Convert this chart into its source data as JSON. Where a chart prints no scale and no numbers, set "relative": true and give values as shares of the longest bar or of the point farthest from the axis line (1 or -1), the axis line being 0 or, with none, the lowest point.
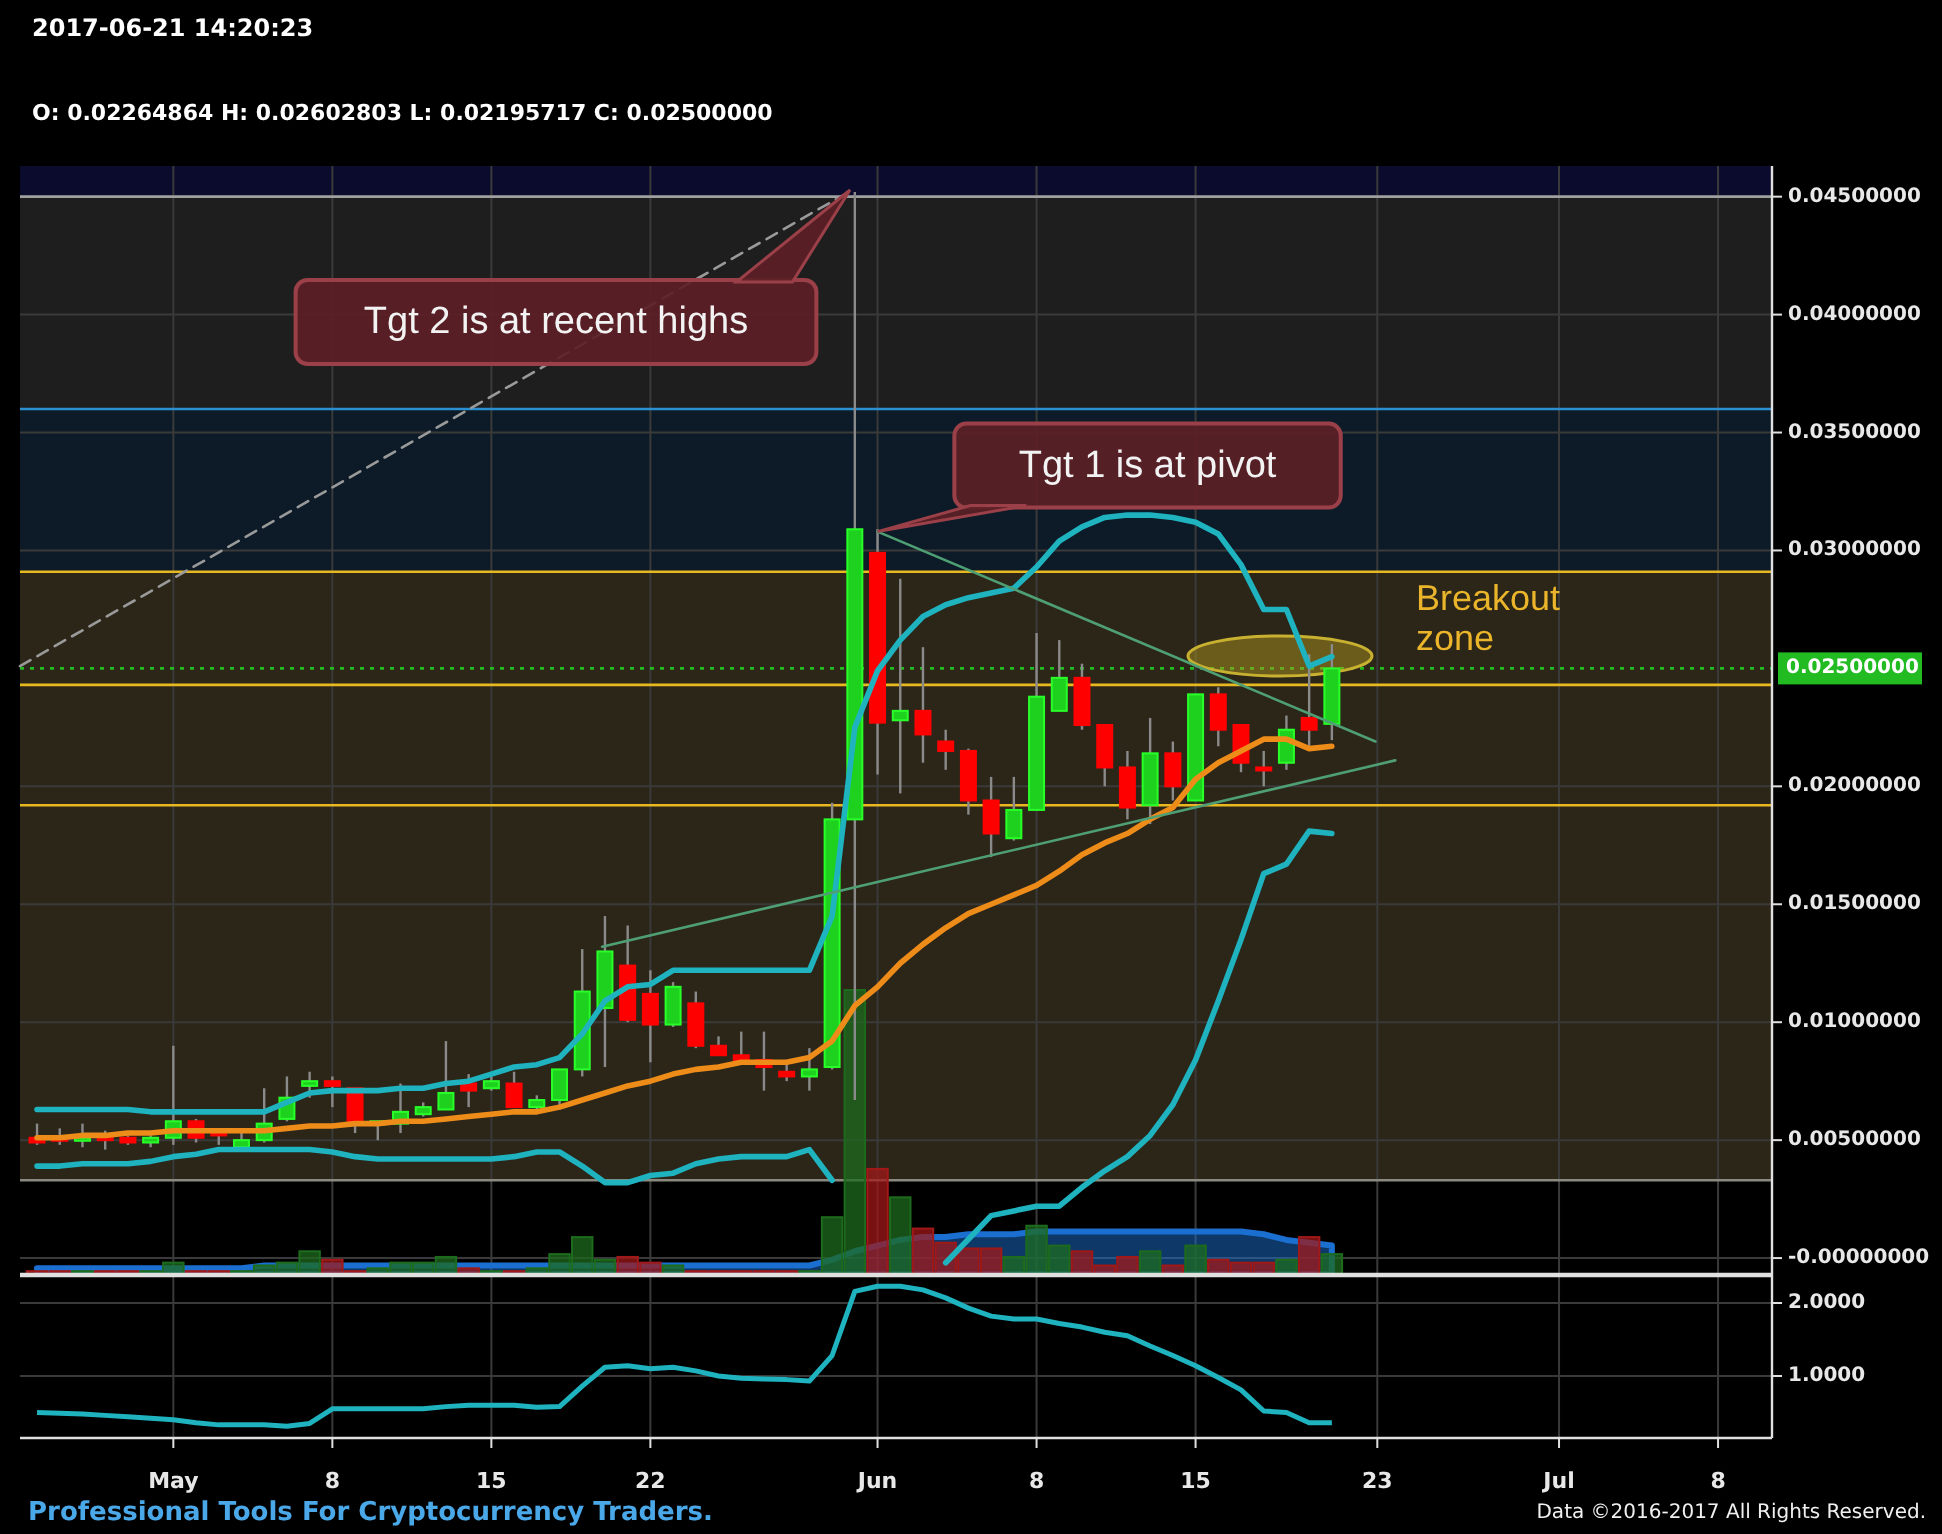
{
  "chart_data": [
    {
      "type": "candlestick",
      "title": "2017-06-21 14:20:23",
      "subtitle": "O: 0.02264864 H: 0.02602803 L: 0.02195717 C: 0.02500000",
      "x": [
        "2017-04-25",
        "2017-04-26",
        "2017-04-27",
        "2017-04-28",
        "2017-04-29",
        "2017-04-30",
        "2017-05-01",
        "2017-05-02",
        "2017-05-03",
        "2017-05-04",
        "2017-05-05",
        "2017-05-06",
        "2017-05-07",
        "2017-05-08",
        "2017-05-09",
        "2017-05-10",
        "2017-05-11",
        "2017-05-12",
        "2017-05-13",
        "2017-05-14",
        "2017-05-15",
        "2017-05-16",
        "2017-05-17",
        "2017-05-18",
        "2017-05-19",
        "2017-05-20",
        "2017-05-21",
        "2017-05-22",
        "2017-05-23",
        "2017-05-24",
        "2017-05-25",
        "2017-05-26",
        "2017-05-27",
        "2017-05-28",
        "2017-05-29",
        "2017-05-30",
        "2017-05-31",
        "2017-06-01",
        "2017-06-02",
        "2017-06-03",
        "2017-06-04",
        "2017-06-05",
        "2017-06-06",
        "2017-06-07",
        "2017-06-08",
        "2017-06-09",
        "2017-06-10",
        "2017-06-11",
        "2017-06-12",
        "2017-06-13",
        "2017-06-14",
        "2017-06-15",
        "2017-06-16",
        "2017-06-17",
        "2017-06-18",
        "2017-06-19",
        "2017-06-20",
        "2017-06-21"
      ],
      "ohlc": [
        [
          0.0051,
          0.0057,
          0.0048,
          0.0049
        ],
        [
          0.0051,
          0.0055,
          0.0048,
          0.005
        ],
        [
          0.005,
          0.0057,
          0.0047,
          0.0051
        ],
        [
          0.0052,
          0.0054,
          0.0046,
          0.005
        ],
        [
          0.0051,
          0.0052,
          0.0048,
          0.0049
        ],
        [
          0.0049,
          0.0052,
          0.0047,
          0.0051
        ],
        [
          0.0051,
          0.009,
          0.0048,
          0.0058
        ],
        [
          0.0058,
          0.0059,
          0.0049,
          0.0051
        ],
        [
          0.0054,
          0.0055,
          0.0048,
          0.0052
        ],
        [
          0.0047,
          0.0054,
          0.0046,
          0.005
        ],
        [
          0.005,
          0.0072,
          0.0049,
          0.0057
        ],
        [
          0.0059,
          0.0077,
          0.0058,
          0.0068
        ],
        [
          0.0073,
          0.0079,
          0.0068,
          0.0075
        ],
        [
          0.0075,
          0.0077,
          0.0064,
          0.0073
        ],
        [
          0.0072,
          0.0072,
          0.0053,
          0.0057
        ],
        [
          0.0057,
          0.0058,
          0.005,
          0.0058
        ],
        [
          0.0057,
          0.0074,
          0.0053,
          0.0062
        ],
        [
          0.0061,
          0.0066,
          0.006,
          0.0064
        ],
        [
          0.0063,
          0.0092,
          0.0063,
          0.007
        ],
        [
          0.0074,
          0.0078,
          0.0064,
          0.0071
        ],
        [
          0.0072,
          0.0077,
          0.0071,
          0.0075
        ],
        [
          0.0074,
          0.0079,
          0.0064,
          0.0064
        ],
        [
          0.0064,
          0.0069,
          0.0062,
          0.0067
        ],
        [
          0.0067,
          0.008,
          0.0063,
          0.008
        ],
        [
          0.008,
          0.0131,
          0.0077,
          0.0113
        ],
        [
          0.0106,
          0.0145,
          0.0081,
          0.013
        ],
        [
          0.0124,
          0.0141,
          0.01,
          0.0101
        ],
        [
          0.0112,
          0.0122,
          0.0083,
          0.0099
        ],
        [
          0.0099,
          0.0117,
          0.0098,
          0.0115
        ],
        [
          0.0108,
          0.0113,
          0.0089,
          0.009
        ],
        [
          0.009,
          0.0094,
          0.0086,
          0.0086
        ],
        [
          0.0086,
          0.0096,
          0.0083,
          0.0084
        ],
        [
          0.0084,
          0.0096,
          0.0071,
          0.0081
        ],
        [
          0.0079,
          0.0084,
          0.0075,
          0.0077
        ],
        [
          0.0077,
          0.0089,
          0.0071,
          0.008
        ],
        [
          0.0081,
          0.0193,
          0.008,
          0.0186
        ],
        [
          0.0186,
          0.0452,
          0.0067,
          0.0309
        ],
        [
          0.0299,
          0.0309,
          0.0205,
          0.0227
        ],
        [
          0.0228,
          0.0288,
          0.0197,
          0.0232
        ],
        [
          0.0232,
          0.0259,
          0.021,
          0.0222
        ],
        [
          0.0219,
          0.0224,
          0.0207,
          0.0215
        ],
        [
          0.0215,
          0.0216,
          0.0188,
          0.0194
        ],
        [
          0.0194,
          0.0204,
          0.017,
          0.018
        ],
        [
          0.0178,
          0.0204,
          0.0177,
          0.019
        ],
        [
          0.019,
          0.0265,
          0.019,
          0.0238
        ],
        [
          0.0232,
          0.0262,
          0.0232,
          0.0246
        ],
        [
          0.0246,
          0.0252,
          0.0224,
          0.0226
        ],
        [
          0.0226,
          0.0226,
          0.02,
          0.0208
        ],
        [
          0.0208,
          0.0215,
          0.0186,
          0.0191
        ],
        [
          0.0192,
          0.0229,
          0.0184,
          0.0214
        ],
        [
          0.0214,
          0.0219,
          0.0194,
          0.02
        ],
        [
          0.0194,
          0.0239,
          0.0194,
          0.0239
        ],
        [
          0.0239,
          0.0242,
          0.0217,
          0.0224
        ],
        [
          0.0226,
          0.0226,
          0.0206,
          0.021
        ],
        [
          0.0208,
          0.0215,
          0.02,
          0.0207
        ],
        [
          0.021,
          0.023,
          0.0207,
          0.0224
        ],
        [
          0.0229,
          0.0256,
          0.0217,
          0.0224
        ],
        [
          0.02264864,
          0.02602803,
          0.02195717,
          0.025
        ]
      ],
      "colors": [
        "#ff0000",
        "#ff0000",
        "#1fd11f",
        "#ff0000",
        "#ff0000",
        "#1fd11f",
        "#1fd11f",
        "#ff0000",
        "#ff0000",
        "#1fd11f",
        "#1fd11f",
        "#1fd11f",
        "#1fd11f",
        "#ff0000",
        "#ff0000",
        "#1fd11f",
        "#1fd11f",
        "#1fd11f",
        "#1fd11f",
        "#ff0000",
        "#1fd11f",
        "#ff0000",
        "#1fd11f",
        "#1fd11f",
        "#1fd11f",
        "#1fd11f",
        "#ff0000",
        "#ff0000",
        "#1fd11f",
        "#ff0000",
        "#ff0000",
        "#ff0000",
        "#ff0000",
        "#ff0000",
        "#1fd11f",
        "#1fd11f",
        "#1fd11f",
        "#ff0000",
        "#1fd11f",
        "#ff0000",
        "#ff0000",
        "#ff0000",
        "#ff0000",
        "#1fd11f",
        "#1fd11f",
        "#1fd11f",
        "#ff0000",
        "#ff0000",
        "#ff0000",
        "#1fd11f",
        "#ff0000",
        "#1fd11f",
        "#ff0000",
        "#ff0000",
        "#ff0000",
        "#1fd11f",
        "#ff0000",
        "#1fd11f"
      ],
      "series": [
        {
          "type": "line",
          "color": "#1fb3bf",
          "values": [
            0.0063,
            0.0063,
            0.0063,
            0.0063,
            0.0063,
            0.0062,
            0.0062,
            0.0062,
            0.0062,
            0.0062,
            0.0062,
            0.0066,
            0.007,
            0.0071,
            0.0071,
            0.0071,
            0.0072,
            0.0072,
            0.0074,
            0.0075,
            0.0078,
            0.0081,
            0.0082,
            0.0085,
            0.0095,
            0.0109,
            0.0115,
            0.0116,
            0.0122,
            0.0122,
            0.0122,
            0.0122,
            0.0122,
            0.0122,
            0.0122,
            0.0145,
            0.0225,
            0.0249,
            0.0262,
            0.0272,
            0.0277,
            0.028,
            0.0282,
            0.0284,
            0.0293,
            0.0304,
            0.031,
            0.0314,
            0.0315,
            0.0315,
            0.0314,
            0.0312,
            0.0307,
            0.0294,
            0.0275,
            0.0275,
            0.0251,
            0.0255
          ]
        },
        {
          "type": "line",
          "color": "#ee8c1a",
          "values": [
            0.0051,
            0.0051,
            0.0052,
            0.0052,
            0.0053,
            0.0053,
            0.0054,
            0.0054,
            0.0054,
            0.0054,
            0.0054,
            0.0055,
            0.0056,
            0.0056,
            0.0057,
            0.0057,
            0.0058,
            0.0058,
            0.0059,
            0.006,
            0.0061,
            0.0062,
            0.0062,
            0.0064,
            0.0067,
            0.007,
            0.0073,
            0.0075,
            0.0078,
            0.008,
            0.0081,
            0.0083,
            0.0083,
            0.0083,
            0.0085,
            0.0092,
            0.0107,
            0.0115,
            0.0125,
            0.0133,
            0.014,
            0.0146,
            0.015,
            0.0154,
            0.0158,
            0.0164,
            0.0171,
            0.0176,
            0.018,
            0.0186,
            0.0191,
            0.0203,
            0.021,
            0.0215,
            0.022,
            0.022,
            0.0216,
            0.0217
          ]
        },
        {
          "type": "line",
          "color": "#1fb3bf",
          "values": [
            0.0039,
            0.0039,
            0.004,
            0.004,
            0.004,
            0.0041,
            0.0043,
            0.0044,
            0.0046,
            0.0046,
            0.0046,
            0.0046,
            0.0046,
            0.0045,
            0.0043,
            0.0042,
            0.0042,
            0.0042,
            0.0042,
            0.0042,
            0.0042,
            0.0043,
            0.0045,
            0.0045,
            0.0039,
            0.0032,
            0.0032,
            0.0035,
            0.0036,
            0.004,
            0.0042,
            0.0043,
            0.0043,
            0.0043,
            0.0046,
            0.0033,
            null,
            null,
            null,
            null,
            -0.0002,
            0.0008,
            0.0018,
            0.002,
            0.0022,
            0.0022,
            0.003,
            0.0037,
            0.0043,
            0.0052,
            0.0065,
            0.0084,
            0.0109,
            0.0135,
            0.0163,
            0.0167,
            0.0181,
            0.018
          ]
        },
        {
          "type": "line",
          "color": "#9a9a9a",
          "line_style": "dashed",
          "x": [
            "2017-04-24T06:00",
            "2017-05-30T22:00"
          ],
          "values": [
            0.0251,
            0.0453
          ]
        },
        {
          "type": "line",
          "color": "#4f9f74",
          "x": [
            "2017-06-01",
            "2017-06-22T22:00"
          ],
          "values": [
            0.0308,
            0.0219
          ]
        },
        {
          "type": "line",
          "color": "#4f9f74",
          "x": [
            "2017-05-19T21:00",
            "2017-06-23T19:00"
          ],
          "values": [
            0.0132,
            0.0211
          ]
        }
      ],
      "xlim": [
        "2017-04-24T06:00",
        "2017-07-10T09:00"
      ],
      "xticks": [
        {
          "value": "2017-05-01",
          "label": null
        },
        {
          "value": "2017-05-08",
          "label": null
        },
        {
          "value": "2017-05-15",
          "label": null
        },
        {
          "value": "2017-05-22",
          "label": null
        },
        {
          "value": "2017-06-01",
          "label": null
        },
        {
          "value": "2017-06-08",
          "label": null
        },
        {
          "value": "2017-06-15",
          "label": null
        },
        {
          "value": "2017-06-23",
          "label": null
        },
        {
          "value": "2017-07-01",
          "label": null
        },
        {
          "value": "2017-07-08",
          "label": null
        }
      ],
      "ylim": [
        -0.00076,
        0.0463
      ],
      "yticks": [
        {
          "value": 0,
          "label": "-0.00000000"
        },
        {
          "value": 0.005,
          "label": "0.00500000"
        },
        {
          "value": 0.01,
          "label": "0.01000000"
        },
        {
          "value": 0.015,
          "label": "0.01500000"
        },
        {
          "value": 0.02,
          "label": "0.02000000"
        },
        {
          "value": 0.03,
          "label": "0.03000000"
        },
        {
          "value": 0.035,
          "label": "0.03500000"
        },
        {
          "value": 0.04,
          "label": "0.04000000"
        },
        {
          "value": 0.045,
          "label": "0.04500000"
        }
      ],
      "tick_labels": "y",
      "grid": true,
      "bands": [
        {
          "axis": "y",
          "from": 0.045,
          "to": 0.0463,
          "color": "#0b0b2e"
        },
        {
          "axis": "y",
          "from": 0.036,
          "to": 0.045,
          "color": "#1e1e1e"
        },
        {
          "axis": "y",
          "from": 0.0291,
          "to": 0.036,
          "color": "#0c1b27"
        },
        {
          "axis": "y",
          "from": 0.0033,
          "to": 0.0291,
          "color": "#2c2619"
        }
      ],
      "ref_lines": [
        {
          "axis": "y",
          "value": 0.045,
          "color": "#a0a0a0"
        },
        {
          "axis": "y",
          "value": 0.036,
          "color": "#2b8fd0"
        },
        {
          "axis": "y",
          "value": 0.0291,
          "color": "#e8b820"
        },
        {
          "axis": "y",
          "value": 0.0243,
          "color": "#e8b820"
        },
        {
          "axis": "y",
          "value": 0.0192,
          "color": "#e8b820"
        },
        {
          "axis": "y",
          "value": 0.0033,
          "color": "#8a8a80"
        },
        {
          "axis": "y",
          "value": 0.025,
          "color": "#22bb22",
          "line_style": "dotted",
          "label": "0.02500000"
        }
      ],
      "annotations": [
        "Tgt 2 is at recent highs",
        {
          "text": "Tgt 1 is at pivot",
          "x": "2017-06-01",
          "y": 0.0308
        },
        "Breakout zone"
      ]
    },
    {
      "type": "bar",
      "relative": true,
      "tick_labels": false,
      "x": [
        "2017-04-25",
        "2017-04-26",
        "2017-04-27",
        "2017-04-28",
        "2017-04-29",
        "2017-04-30",
        "2017-05-01",
        "2017-05-02",
        "2017-05-03",
        "2017-05-04",
        "2017-05-05",
        "2017-05-06",
        "2017-05-07",
        "2017-05-08",
        "2017-05-09",
        "2017-05-10",
        "2017-05-11",
        "2017-05-12",
        "2017-05-13",
        "2017-05-14",
        "2017-05-15",
        "2017-05-16",
        "2017-05-17",
        "2017-05-18",
        "2017-05-19",
        "2017-05-20",
        "2017-05-21",
        "2017-05-22",
        "2017-05-23",
        "2017-05-24",
        "2017-05-25",
        "2017-05-26",
        "2017-05-27",
        "2017-05-28",
        "2017-05-29",
        "2017-05-30",
        "2017-05-31",
        "2017-06-01",
        "2017-06-02",
        "2017-06-03",
        "2017-06-04",
        "2017-06-05",
        "2017-06-06",
        "2017-06-07",
        "2017-06-08",
        "2017-06-09",
        "2017-06-10",
        "2017-06-11",
        "2017-06-12",
        "2017-06-13",
        "2017-06-14",
        "2017-06-15",
        "2017-06-16",
        "2017-06-17",
        "2017-06-18",
        "2017-06-19",
        "2017-06-20",
        "2017-06-21"
      ],
      "xlim": [
        "2017-04-24T06:00",
        "2017-07-10T09:00"
      ],
      "series": [
        {
          "type": "bar",
          "colors": [
            "#a01818",
            "#a01818",
            "#1d6b1d",
            "#a01818",
            "#a01818",
            "#1d6b1d",
            "#1d6b1d",
            "#a01818",
            "#a01818",
            "#1d6b1d",
            "#1d6b1d",
            "#1d6b1d",
            "#1d6b1d",
            "#a01818",
            "#a01818",
            "#1d6b1d",
            "#1d6b1d",
            "#1d6b1d",
            "#1d6b1d",
            "#a01818",
            "#1d6b1d",
            "#a01818",
            "#1d6b1d",
            "#1d6b1d",
            "#1d6b1d",
            "#1d6b1d",
            "#a01818",
            "#a01818",
            "#1d6b1d",
            "#a01818",
            "#a01818",
            "#a01818",
            "#a01818",
            "#a01818",
            "#1d6b1d",
            "#1d6b1d",
            "#1d6b1d",
            "#a01818",
            "#1d6b1d",
            "#a01818",
            "#a01818",
            "#a01818",
            "#a01818",
            "#1d6b1d",
            "#1d6b1d",
            "#1d6b1d",
            "#a01818",
            "#a01818",
            "#a01818",
            "#1d6b1d",
            "#a01818",
            "#1d6b1d",
            "#a01818",
            "#a01818",
            "#a01818",
            "#1d6b1d",
            "#a01818",
            "#1d6b1d"
          ],
          "values": [
            0.01,
            0.01,
            0.01,
            0.01,
            0.01,
            0.01,
            0.04,
            0.01,
            0.01,
            0.01,
            0.03,
            0.04,
            0.08,
            0.05,
            0.01,
            0.02,
            0.04,
            0.04,
            0.06,
            0.02,
            0.01,
            0.01,
            0.02,
            0.07,
            0.13,
            0.05,
            0.06,
            0.04,
            0.03,
            0.01,
            0.01,
            0.01,
            0.01,
            0.01,
            0.01,
            0.2,
            1,
            0.37,
            0.27,
            0.16,
            0.11,
            0.09,
            0.09,
            0.06,
            0.17,
            0.1,
            0.08,
            0.03,
            0.06,
            0.08,
            0.03,
            0.1,
            0.05,
            0.04,
            0.04,
            0.05,
            0.13,
            0.07
          ]
        },
        {
          "type": "area",
          "color": "#1b6fd0",
          "values": [
            0.02,
            0.02,
            0.02,
            0.02,
            0.02,
            0.02,
            0.02,
            0.02,
            0.02,
            0.02,
            0.03,
            0.03,
            0.03,
            0.03,
            0.03,
            0.03,
            0.03,
            0.03,
            0.03,
            0.03,
            0.03,
            0.03,
            0.03,
            0.03,
            0.03,
            0.03,
            0.03,
            0.03,
            0.03,
            0.03,
            0.03,
            0.03,
            0.03,
            0.03,
            0.03,
            0.05,
            0.08,
            0.1,
            0.12,
            0.13,
            0.13,
            0.14,
            0.14,
            0.14,
            0.15,
            0.15,
            0.15,
            0.15,
            0.15,
            0.15,
            0.15,
            0.15,
            0.15,
            0.15,
            0.14,
            0.12,
            0.11,
            0.1
          ]
        }
      ]
    },
    {
      "type": "line",
      "color": "#1fb3bf",
      "grid": true,
      "x": [
        "2017-04-25",
        "2017-04-26",
        "2017-04-27",
        "2017-04-28",
        "2017-04-29",
        "2017-04-30",
        "2017-05-01",
        "2017-05-02",
        "2017-05-03",
        "2017-05-04",
        "2017-05-05",
        "2017-05-06",
        "2017-05-07",
        "2017-05-08",
        "2017-05-09",
        "2017-05-10",
        "2017-05-11",
        "2017-05-12",
        "2017-05-13",
        "2017-05-14",
        "2017-05-15",
        "2017-05-16",
        "2017-05-17",
        "2017-05-18",
        "2017-05-19",
        "2017-05-20",
        "2017-05-21",
        "2017-05-22",
        "2017-05-23",
        "2017-05-24",
        "2017-05-25",
        "2017-05-26",
        "2017-05-27",
        "2017-05-28",
        "2017-05-29",
        "2017-05-30",
        "2017-05-31",
        "2017-06-01",
        "2017-06-02",
        "2017-06-03",
        "2017-06-04",
        "2017-06-05",
        "2017-06-06",
        "2017-06-07",
        "2017-06-08",
        "2017-06-09",
        "2017-06-10",
        "2017-06-11",
        "2017-06-12",
        "2017-06-13",
        "2017-06-14",
        "2017-06-15",
        "2017-06-16",
        "2017-06-17",
        "2017-06-18",
        "2017-06-19",
        "2017-06-20",
        "2017-06-21"
      ],
      "values": [
        0.5,
        0.49,
        0.48,
        0.46,
        0.44,
        0.42,
        0.4,
        0.36,
        0.33,
        0.33,
        0.33,
        0.31,
        0.35,
        0.55,
        0.55,
        0.55,
        0.55,
        0.55,
        0.58,
        0.6,
        0.6,
        0.6,
        0.57,
        0.58,
        0.86,
        1.12,
        1.14,
        1.1,
        1.12,
        1.07,
        1.0,
        0.97,
        0.96,
        0.95,
        0.93,
        1.28,
        2.16,
        2.23,
        2.23,
        2.18,
        2.07,
        1.93,
        1.82,
        1.78,
        1.78,
        1.72,
        1.67,
        1.6,
        1.55,
        1.41,
        1.28,
        1.14,
        0.98,
        0.81,
        0.52,
        0.5,
        0.36,
        0.36
      ],
      "xlim": [
        "2017-04-24T06:00",
        "2017-07-10T09:00"
      ],
      "xticks": [
        {
          "value": "2017-05-01",
          "label": "May"
        },
        {
          "value": "2017-05-08",
          "label": "8"
        },
        {
          "value": "2017-05-15",
          "label": "15"
        },
        {
          "value": "2017-05-22",
          "label": "22"
        },
        {
          "value": "2017-06-01",
          "label": "Jun"
        },
        {
          "value": "2017-06-08",
          "label": "8"
        },
        {
          "value": "2017-06-15",
          "label": "15"
        },
        {
          "value": "2017-06-23",
          "label": "23"
        },
        {
          "value": "2017-07-01",
          "label": "Jul"
        },
        {
          "value": "2017-07-08",
          "label": "8"
        }
      ],
      "ylim": [
        0.15,
        2.37
      ],
      "yticks": [
        {
          "value": 1,
          "label": "1.0000"
        },
        {
          "value": 2,
          "label": "2.0000"
        }
      ],
      "annotations": [
        "Professional Tools For Cryptocurrency Traders.",
        "Data ©2016-2017 All Rights Reserved."
      ]
    }
  ]
}
